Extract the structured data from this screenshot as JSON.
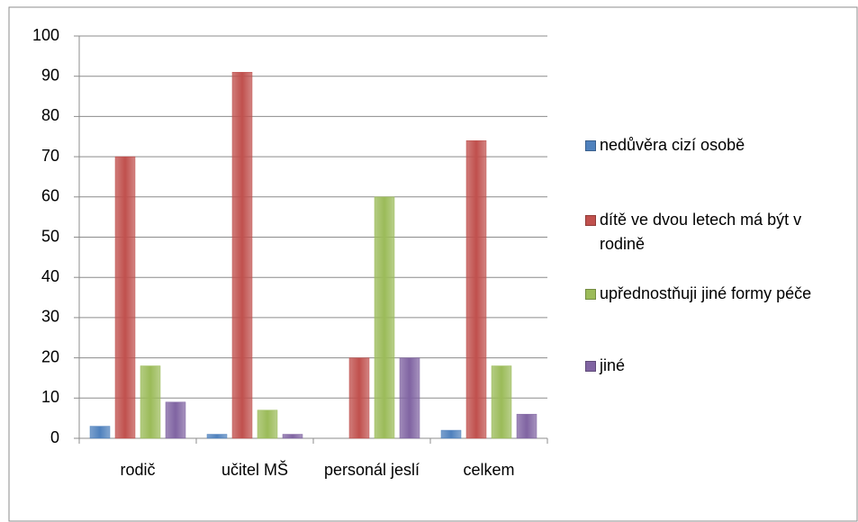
{
  "chart_data": {
    "type": "bar",
    "categories": [
      "rodič",
      "učitel MŠ",
      "personál jeslí",
      "celkem"
    ],
    "series": [
      {
        "name": "nedůvěra cizí osobě",
        "color": "#4f81bd",
        "values": [
          3,
          1,
          0,
          2
        ]
      },
      {
        "name": "dítě ve dvou letech má být v rodině",
        "color": "#c0504d",
        "values": [
          70,
          91,
          20,
          74
        ]
      },
      {
        "name": "upřednostňuji jiné formy péče",
        "color": "#9bbb59",
        "values": [
          18,
          7,
          60,
          18
        ]
      },
      {
        "name": "jiné",
        "color": "#8064a2",
        "values": [
          9,
          1,
          20,
          6
        ]
      }
    ],
    "ylim": [
      0,
      100
    ],
    "yticks": [
      0,
      10,
      20,
      30,
      40,
      50,
      60,
      70,
      80,
      90,
      100
    ],
    "grid": true,
    "legend": "right"
  }
}
